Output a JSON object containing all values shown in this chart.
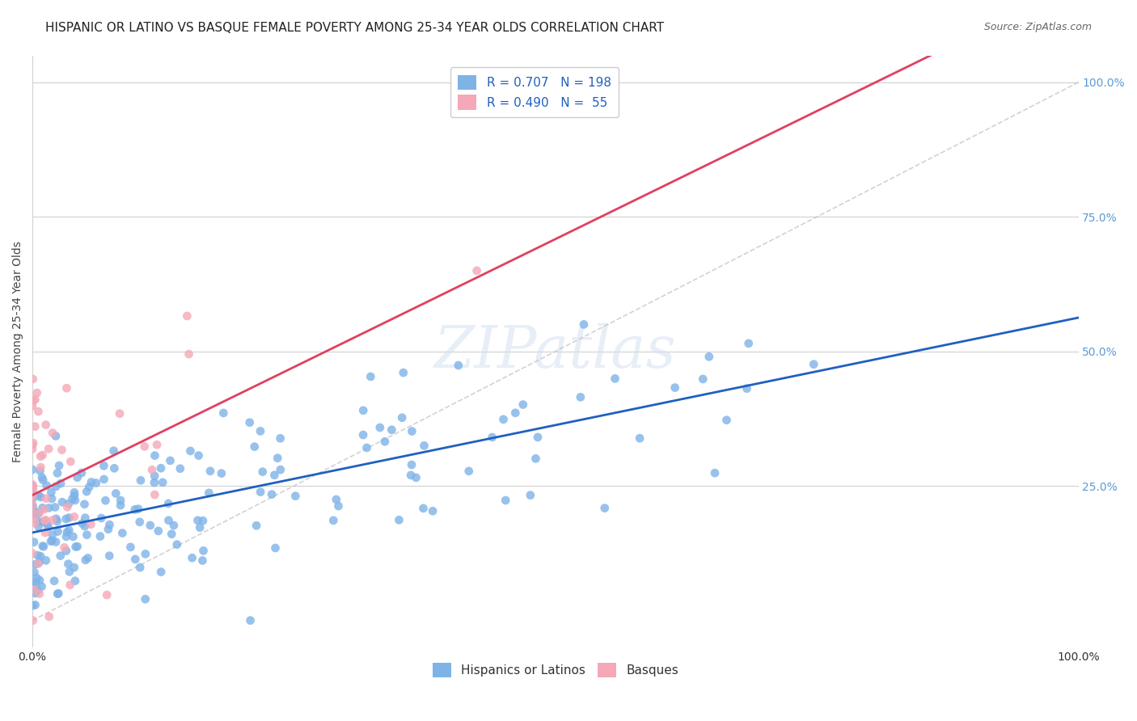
{
  "title": "HISPANIC OR LATINO VS BASQUE FEMALE POVERTY AMONG 25-34 YEAR OLDS CORRELATION CHART",
  "source": "Source: ZipAtlas.com",
  "xlabel": "",
  "ylabel": "Female Poverty Among 25-34 Year Olds",
  "xlim": [
    0,
    1
  ],
  "ylim": [
    -0.05,
    1.05
  ],
  "x_tick_labels": [
    "0.0%",
    "100.0%"
  ],
  "y_tick_labels_right": [
    "100.0%",
    "75.0%",
    "50.0%",
    "25.0%"
  ],
  "blue_R": 0.707,
  "blue_N": 198,
  "pink_R": 0.49,
  "pink_N": 55,
  "blue_color": "#7eb3e8",
  "pink_color": "#f4a8b8",
  "blue_line_color": "#2060c0",
  "pink_line_color": "#e04060",
  "dashed_line_color": "#c0c0c0",
  "watermark": "ZIPatlas",
  "background_color": "#ffffff",
  "legend_label_blue": "Hispanics or Latinos",
  "legend_label_pink": "Basques",
  "title_fontsize": 11,
  "axis_label_fontsize": 10,
  "tick_fontsize": 10,
  "legend_fontsize": 11,
  "blue_seed": 42,
  "pink_seed": 99
}
